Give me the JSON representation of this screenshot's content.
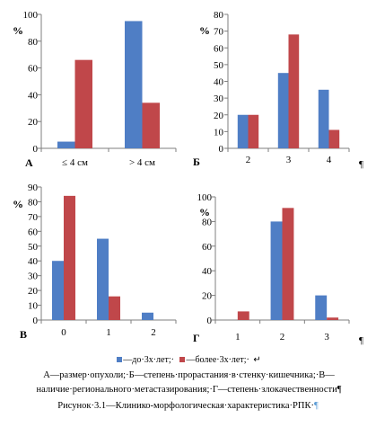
{
  "colors": {
    "series1": "#4f7ec5",
    "series2": "#c0474a",
    "axis": "#7f7f7f",
    "mark": "#5b9bd5"
  },
  "chart_data": [
    {
      "type": "bar",
      "panel_label": "А",
      "y_unit": "%",
      "ylim": [
        0,
        100
      ],
      "yticks": [
        "0",
        "20",
        "40",
        "60",
        "80",
        "100"
      ],
      "categories": [
        "≤ 4 см",
        "> 4 см"
      ],
      "series": [
        {
          "name": "до 3х лет",
          "values": [
            5,
            95
          ]
        },
        {
          "name": "более 3х лет",
          "values": [
            66,
            34
          ]
        }
      ]
    },
    {
      "type": "bar",
      "panel_label": "Б",
      "y_unit": "%",
      "ylim": [
        0,
        80
      ],
      "yticks": [
        "0",
        "10",
        "20",
        "30",
        "40",
        "50",
        "60",
        "70",
        "80"
      ],
      "categories": [
        "2",
        "3",
        "4"
      ],
      "trailing_mark": "¶",
      "series": [
        {
          "name": "до 3х лет",
          "values": [
            20,
            45,
            35
          ]
        },
        {
          "name": "более 3х лет",
          "values": [
            20,
            68,
            11
          ]
        }
      ]
    },
    {
      "type": "bar",
      "panel_label": "В",
      "y_unit": "%",
      "ylim": [
        0,
        90
      ],
      "yticks": [
        "0",
        "10",
        "20",
        "30",
        "40",
        "50",
        "60",
        "70",
        "80",
        "90"
      ],
      "categories": [
        "0",
        "1",
        "2"
      ],
      "series": [
        {
          "name": "до 3х лет",
          "values": [
            40,
            55,
            5
          ]
        },
        {
          "name": "более 3х лет",
          "values": [
            84,
            16,
            0
          ]
        }
      ]
    },
    {
      "type": "bar",
      "panel_label": "Г",
      "y_unit": "%",
      "ylim": [
        0,
        100
      ],
      "yticks": [
        "0",
        "20",
        "40",
        "60",
        "80",
        "100"
      ],
      "categories": [
        "1",
        "2",
        "3"
      ],
      "trailing_mark": "¶",
      "series": [
        {
          "name": "до 3х лет",
          "values": [
            0,
            80,
            20
          ]
        },
        {
          "name": "более 3х лет",
          "values": [
            7,
            91,
            2
          ]
        }
      ]
    }
  ],
  "legend": {
    "item1": "—до·3х·лет;·",
    "item2": "—более·3х·лет;·",
    "tail": "↵"
  },
  "caption": {
    "line1": "А—размер·опухоли;·Б—степень·прорастания·в·стенку·кишечника;·В—наличие·регионального·метастазирования;·Г—степень·злокачественности¶",
    "line2": "Рисунок·3.1—Клинико-морфологическая·характеристика·РПК·"
  }
}
